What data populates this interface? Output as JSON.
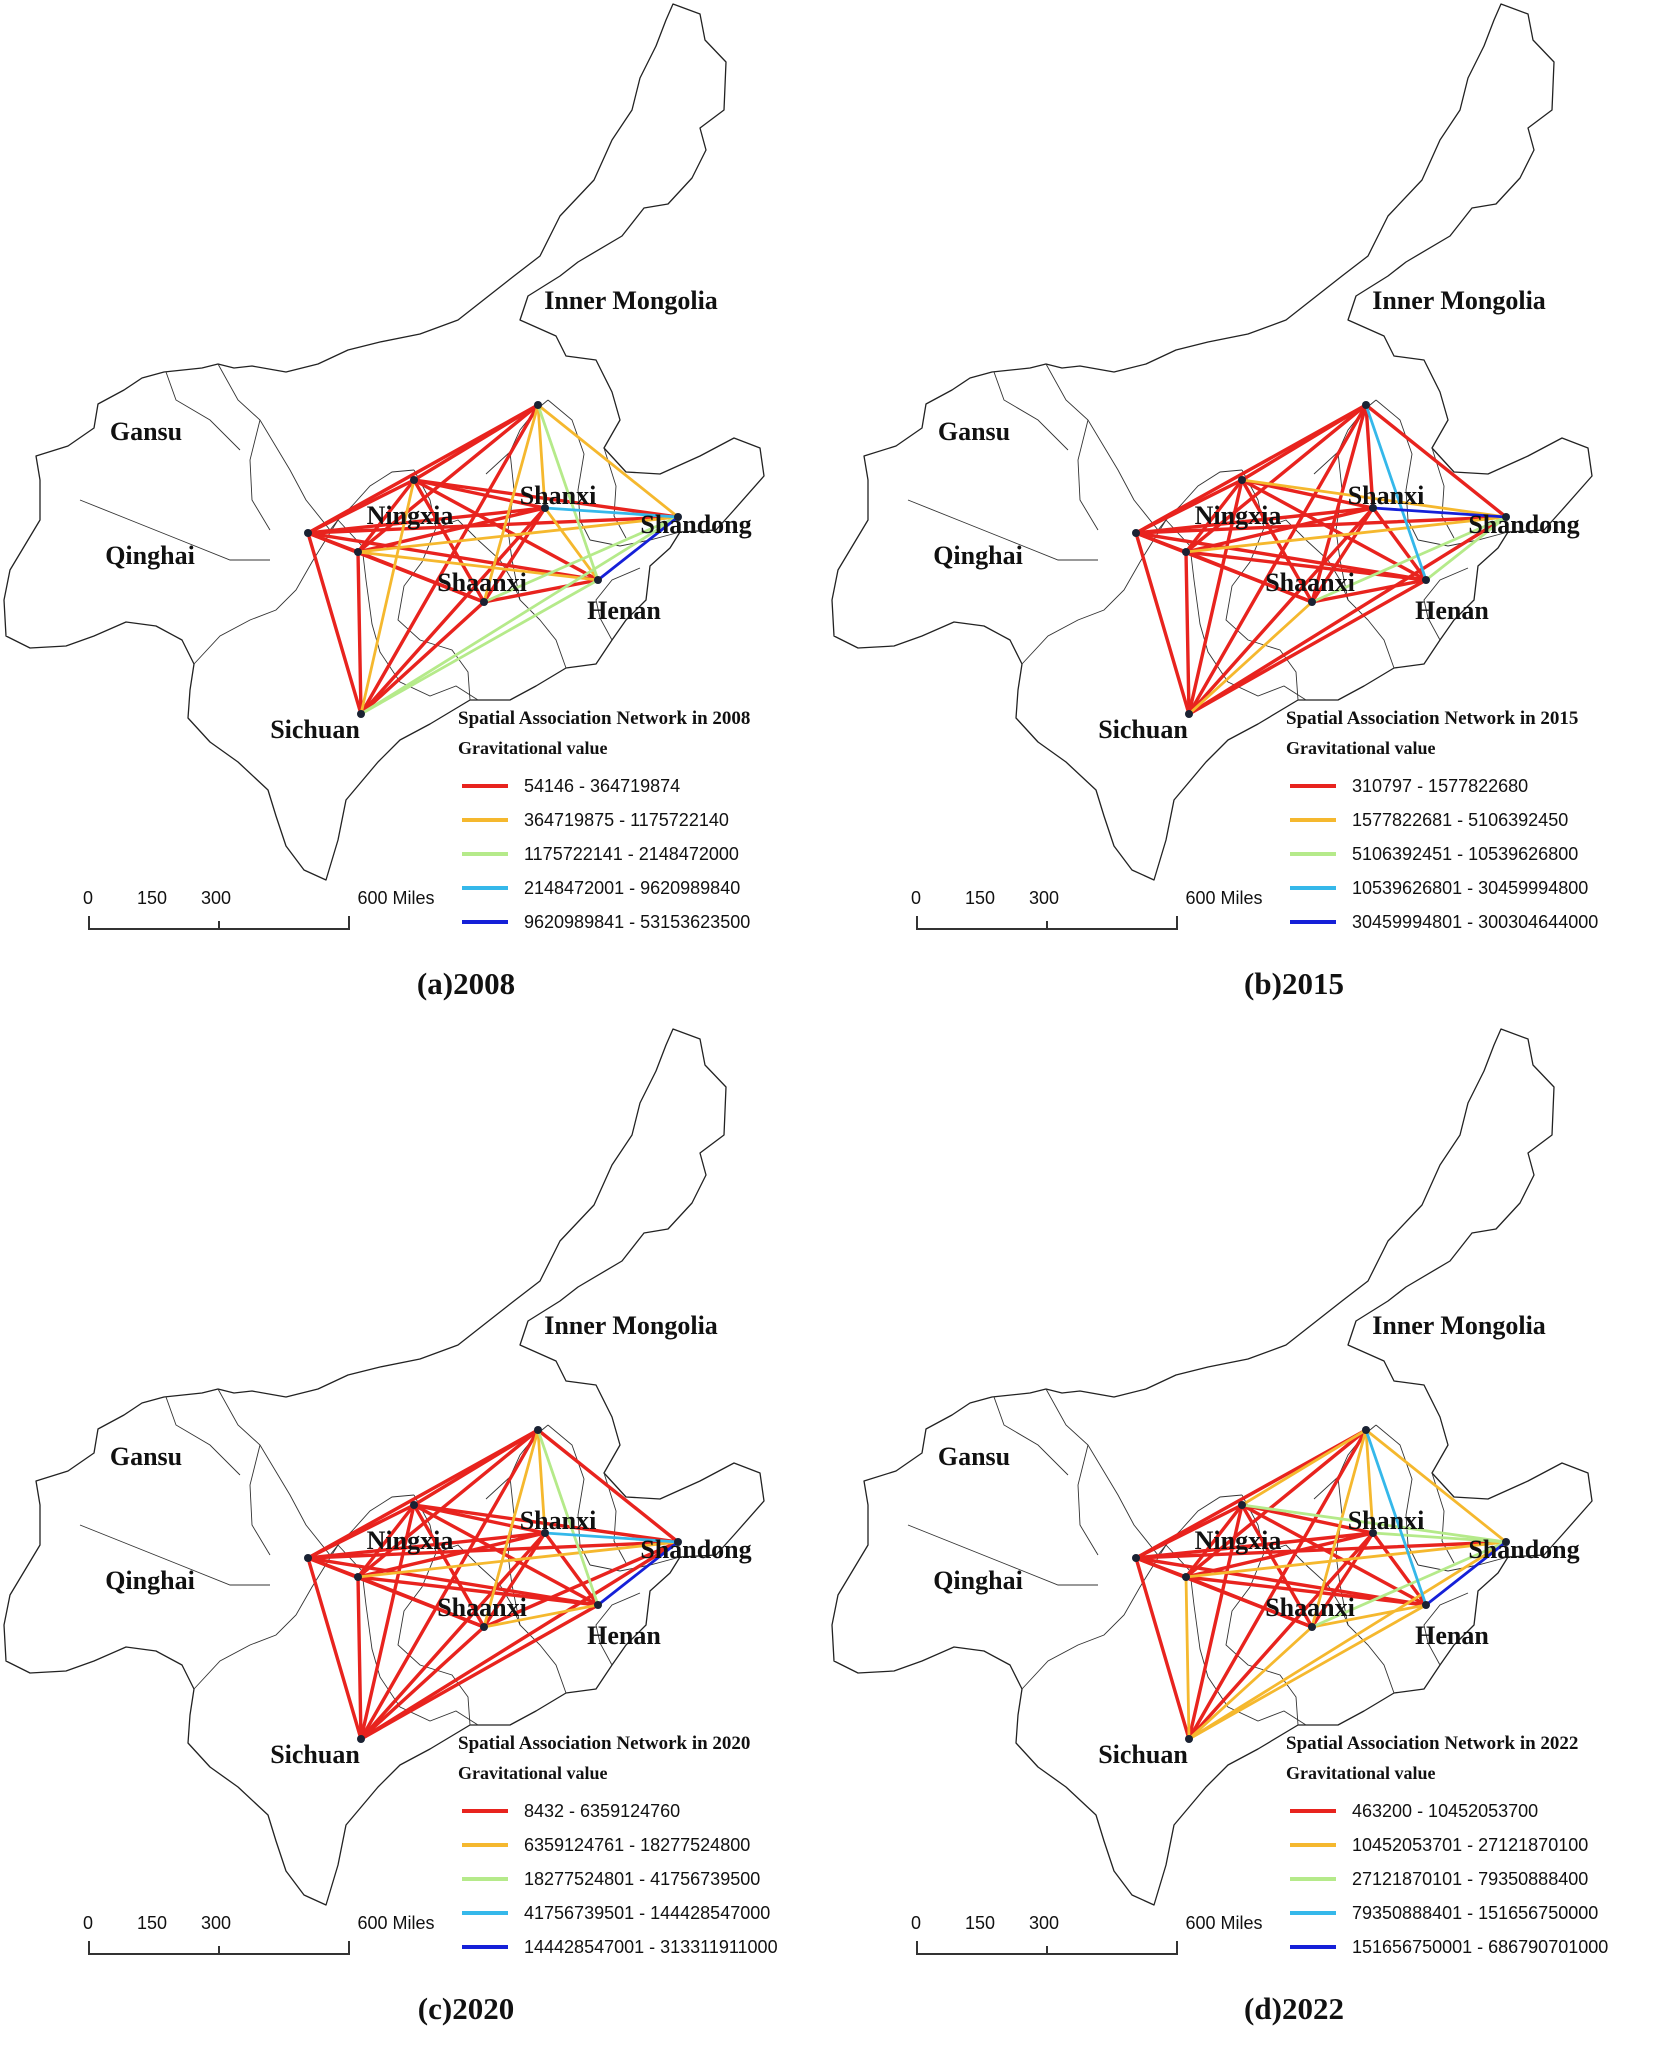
{
  "regions": {
    "inner_mongolia": "Inner Mongolia",
    "gansu": "Gansu",
    "qinghai": "Qinghai",
    "ningxia": "Ningxia",
    "shanxi": "Shanxi",
    "shandong": "Shandong",
    "shaanxi": "Shaanxi",
    "henan": "Henan",
    "sichuan": "Sichuan"
  },
  "legend_subtitle": "Gravitational value",
  "scale_labels": [
    "0",
    "150",
    "300",
    "600 Miles"
  ],
  "class_colors": [
    "#e8231e",
    "#f5b82e",
    "#b5ea8a",
    "#35b8ea",
    "#1520d8"
  ],
  "panels": [
    {
      "caption": "(a)2008",
      "legend_title": "Spatial Association Network in 2008",
      "classes": [
        "54146 - 364719874",
        "364719875 - 1175722140",
        "1175722141 - 2148472000",
        "2148472001 - 9620989840",
        "9620989841 - 53153623500"
      ],
      "links": {
        "IM-QH": 1,
        "IM-NX": 1,
        "IM-GS": 1,
        "IM-SX": 2,
        "IM-SN": 2,
        "IM-HN": 3,
        "IM-SD": 2,
        "IM-SC": 1,
        "QH-NX": 1,
        "QH-GS": 1,
        "QH-SX": 1,
        "QH-SN": 1,
        "QH-HN": 1,
        "QH-SD": 1,
        "QH-SC": 1,
        "NX-GS": 1,
        "NX-SX": 1,
        "NX-SN": 1,
        "NX-HN": 1,
        "NX-SD": 1,
        "NX-SC": 2,
        "GS-SX": 1,
        "GS-SN": 1,
        "GS-HN": 2,
        "GS-SD": 2,
        "GS-SC": 1,
        "SX-SN": 1,
        "SX-HN": 2,
        "SX-SD": 4,
        "SX-SC": 1,
        "SN-HN": 1,
        "SN-SD": 3,
        "SN-SC": 1,
        "HN-SD": 5,
        "HN-SC": 3,
        "SD-SC": 3
      }
    },
    {
      "caption": "(b)2015",
      "legend_title": "Spatial Association Network in 2015",
      "classes": [
        "310797 - 1577822680",
        "1577822681 - 5106392450",
        "5106392451 - 10539626800",
        "10539626801 - 30459994800",
        "30459994801 - 300304644000"
      ],
      "links": {
        "IM-QH": 1,
        "IM-NX": 1,
        "IM-GS": 1,
        "IM-SX": 1,
        "IM-SN": 1,
        "IM-HN": 4,
        "IM-SD": 1,
        "IM-SC": 1,
        "QH-NX": 1,
        "QH-GS": 1,
        "QH-SX": 1,
        "QH-SN": 1,
        "QH-HN": 1,
        "QH-SD": 1,
        "QH-SC": 1,
        "NX-GS": 1,
        "NX-SX": 1,
        "NX-SN": 1,
        "NX-HN": 1,
        "NX-SD": 2,
        "NX-SC": 1,
        "GS-SX": 1,
        "GS-SN": 1,
        "GS-HN": 1,
        "GS-SD": 2,
        "GS-SC": 1,
        "SX-SN": 1,
        "SX-HN": 1,
        "SX-SD": 5,
        "SX-SC": 1,
        "SN-HN": 1,
        "SN-SD": 3,
        "SN-SC": 2,
        "HN-SD": 3,
        "HN-SC": 1,
        "SD-SC": 1
      }
    },
    {
      "caption": "(c)2020",
      "legend_title": "Spatial Association Network in 2020",
      "classes": [
        "8432 - 6359124760",
        "6359124761 - 18277524800",
        "18277524801 - 41756739500",
        "41756739501 - 144428547000",
        "144428547001 - 313311911000"
      ],
      "links": {
        "IM-QH": 1,
        "IM-NX": 1,
        "IM-GS": 1,
        "IM-SX": 2,
        "IM-SN": 2,
        "IM-HN": 3,
        "IM-SD": 1,
        "IM-SC": 1,
        "QH-NX": 1,
        "QH-GS": 1,
        "QH-SX": 1,
        "QH-SN": 1,
        "QH-HN": 1,
        "QH-SD": 1,
        "QH-SC": 1,
        "NX-GS": 1,
        "NX-SX": 1,
        "NX-SN": 1,
        "NX-HN": 1,
        "NX-SD": 1,
        "NX-SC": 1,
        "GS-SX": 1,
        "GS-SN": 1,
        "GS-HN": 1,
        "GS-SD": 2,
        "GS-SC": 1,
        "SX-SN": 1,
        "SX-HN": 1,
        "SX-SD": 4,
        "SX-SC": 1,
        "SN-HN": 2,
        "SN-SD": 1,
        "SN-SC": 1,
        "HN-SD": 5,
        "HN-SC": 1,
        "SD-SC": 1
      }
    },
    {
      "caption": "(d)2022",
      "legend_title": "Spatial Association Network in 2022",
      "classes": [
        "463200 - 10452053700",
        "10452053701 - 27121870100",
        "27121870101 - 79350888400",
        "79350888401 - 151656750000",
        "151656750001 - 686790701000"
      ],
      "links": {
        "IM-QH": 1,
        "IM-NX": 2,
        "IM-GS": 1,
        "IM-SX": 2,
        "IM-SN": 2,
        "IM-HN": 4,
        "IM-SD": 2,
        "IM-SC": 1,
        "QH-NX": 1,
        "QH-GS": 1,
        "QH-SX": 1,
        "QH-SN": 1,
        "QH-HN": 1,
        "QH-SD": 1,
        "QH-SC": 1,
        "NX-GS": 1,
        "NX-SX": 1,
        "NX-SN": 1,
        "NX-HN": 1,
        "NX-SD": 3,
        "NX-SC": 1,
        "GS-SX": 1,
        "GS-SN": 1,
        "GS-HN": 1,
        "GS-SD": 2,
        "GS-SC": 2,
        "SX-SN": 1,
        "SX-HN": 1,
        "SX-SD": 3,
        "SX-SC": 1,
        "SN-HN": 2,
        "SN-SD": 3,
        "SN-SC": 2,
        "HN-SD": 5,
        "HN-SC": 2,
        "SD-SC": 2
      }
    }
  ]
}
